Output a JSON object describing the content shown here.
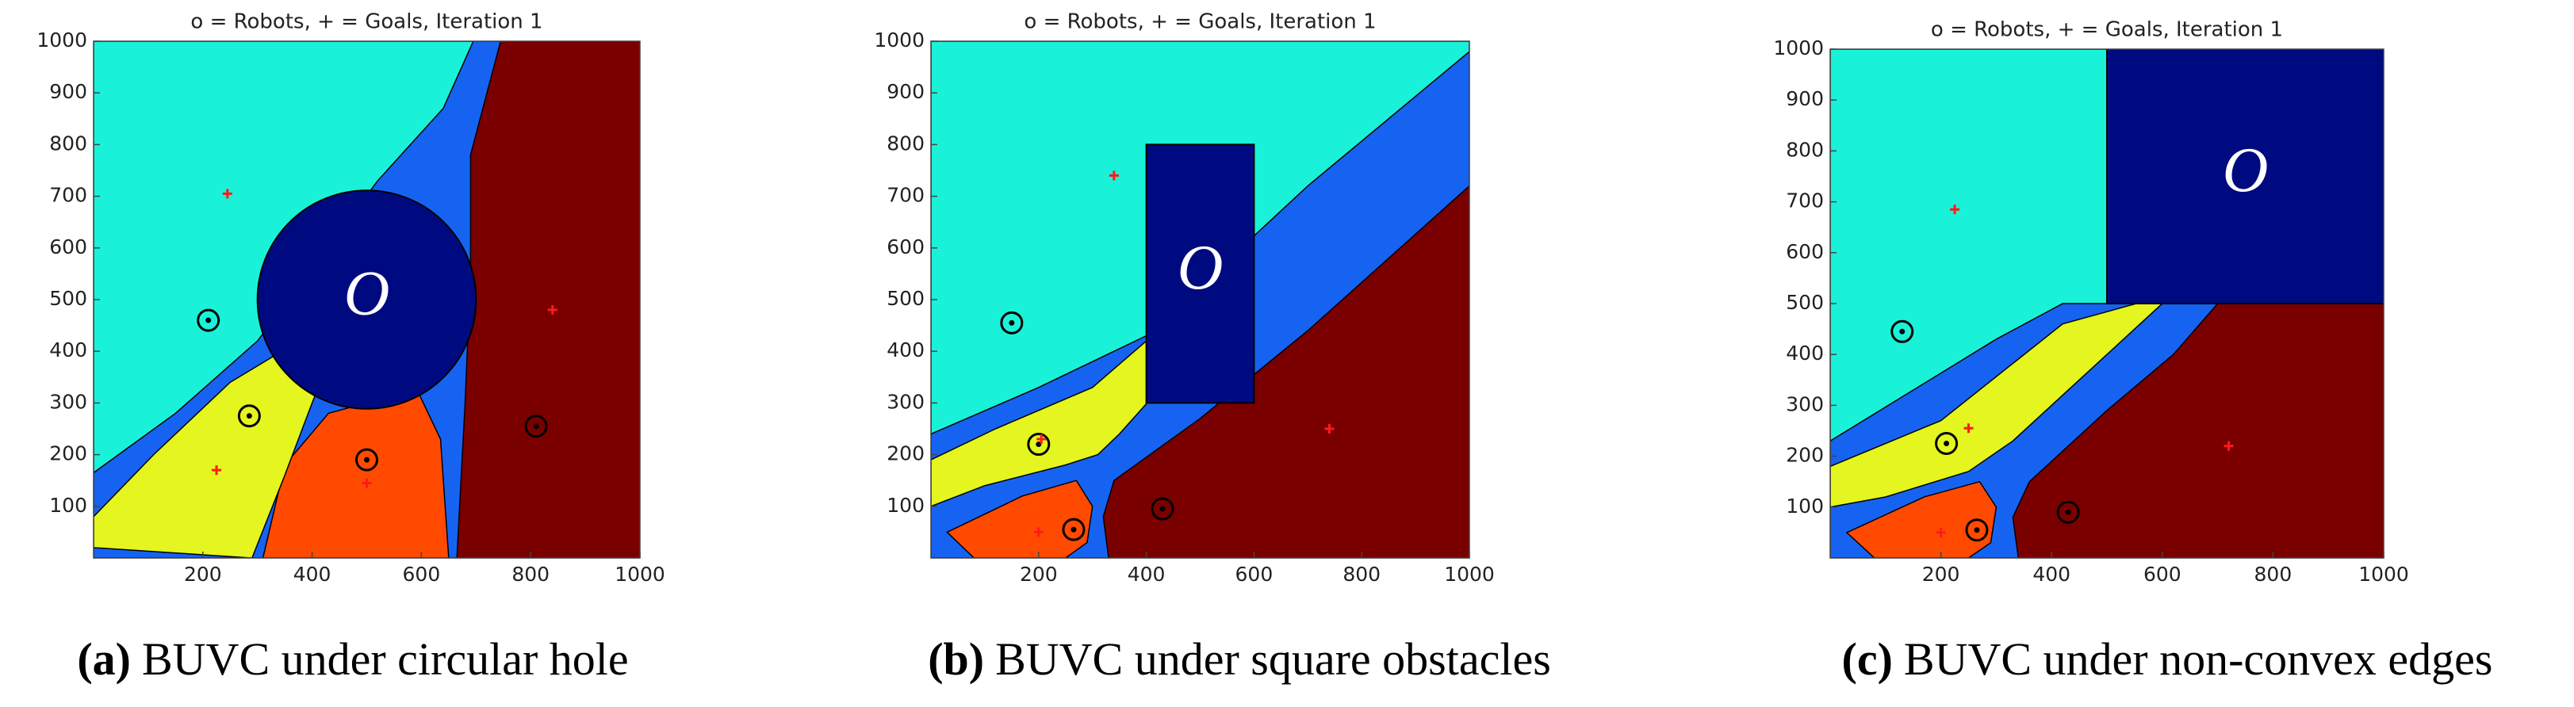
{
  "chart_data": [
    {
      "type": "scatter",
      "title": "o = Robots, + = Goals, Iteration 1",
      "caption_label": "(a)",
      "caption": "BUVC under circular hole",
      "xlim": [
        0,
        1000
      ],
      "ylim": [
        0,
        1000
      ],
      "xticks": [
        200,
        400,
        600,
        800,
        1000
      ],
      "yticks": [
        100,
        200,
        300,
        400,
        500,
        600,
        700,
        800,
        900,
        1000
      ],
      "series": [
        {
          "marker": "o",
          "color": "#000000",
          "x": [
            210,
            285,
            500,
            810
          ],
          "y": [
            460,
            275,
            190,
            255
          ]
        },
        {
          "marker": "+",
          "color": "#ff1a1a",
          "x": [
            245,
            225,
            500,
            840
          ],
          "y": [
            705,
            170,
            145,
            480
          ]
        }
      ],
      "regions": [
        {
          "color": "#1663f2",
          "x": [
            0,
            1000,
            1000,
            0
          ],
          "y": [
            0,
            0,
            1000,
            1000
          ]
        },
        {
          "color": "#19f2d8",
          "x": [
            0,
            695,
            640,
            520,
            400,
            300,
            150,
            0
          ],
          "y": [
            1000,
            1000,
            870,
            730,
            560,
            420,
            280,
            165
          ]
        },
        {
          "color": "#7a0000",
          "x": [
            745,
            1000,
            1000,
            665,
            680,
            690,
            690
          ],
          "y": [
            1000,
            1000,
            0,
            0,
            300,
            550,
            780
          ]
        },
        {
          "color": "#ff4a00",
          "x": [
            310,
            650,
            635,
            590,
            500,
            430,
            350
          ],
          "y": [
            0,
            0,
            230,
            330,
            300,
            280,
            180
          ]
        },
        {
          "color": "#e4f51f",
          "x": [
            0,
            290,
            350,
            400,
            430,
            360,
            250,
            110,
            0
          ],
          "y": [
            20,
            0,
            160,
            300,
            380,
            410,
            340,
            200,
            80
          ]
        }
      ],
      "obstacle": {
        "color": "#000a80",
        "center": [
          500,
          500
        ],
        "radius": 200,
        "label": "O"
      }
    },
    {
      "type": "scatter",
      "title": "o = Robots, + = Goals, Iteration 1",
      "caption_label": "(b)",
      "caption": "BUVC under square obstacles",
      "xlim": [
        0,
        1000
      ],
      "ylim": [
        0,
        1000
      ],
      "xticks": [
        200,
        400,
        600,
        800,
        1000
      ],
      "yticks": [
        100,
        200,
        300,
        400,
        500,
        600,
        700,
        800,
        900,
        1000
      ],
      "series": [
        {
          "marker": "o",
          "color": "#000000",
          "x": [
            150,
            200,
            265,
            430
          ],
          "y": [
            455,
            220,
            55,
            95
          ]
        },
        {
          "marker": "+",
          "color": "#ff1a1a",
          "x": [
            340,
            205,
            200,
            740
          ],
          "y": [
            740,
            230,
            50,
            250
          ]
        }
      ],
      "regions": [
        {
          "color": "#1663f2",
          "x": [
            0,
            1000,
            1000,
            0
          ],
          "y": [
            0,
            0,
            1000,
            1000
          ]
        },
        {
          "color": "#19f2d8",
          "x": [
            0,
            1000,
            1000,
            700,
            400,
            200,
            0
          ],
          "y": [
            1000,
            1000,
            980,
            720,
            430,
            330,
            240
          ]
        },
        {
          "color": "#7a0000",
          "x": [
            1000,
            1000,
            330,
            320,
            340,
            500,
            700
          ],
          "y": [
            720,
            0,
            0,
            80,
            150,
            270,
            440
          ]
        },
        {
          "color": "#e4f51f",
          "x": [
            0,
            120,
            300,
            400,
            410,
            350,
            310,
            250,
            100,
            0
          ],
          "y": [
            190,
            250,
            330,
            420,
            310,
            240,
            200,
            180,
            140,
            100
          ]
        },
        {
          "color": "#ff4a00",
          "x": [
            30,
            170,
            270,
            300,
            290,
            250,
            80
          ],
          "y": [
            50,
            120,
            150,
            100,
            30,
            0,
            0
          ]
        }
      ],
      "obstacle": {
        "color": "#000a80",
        "x": [
          400,
          600,
          600,
          400
        ],
        "y": [
          300,
          300,
          800,
          800
        ],
        "label": "O"
      }
    },
    {
      "type": "scatter",
      "title": "o = Robots, + = Goals, Iteration 1",
      "caption_label": "(c)",
      "caption": "BUVC under non-convex edges",
      "xlim": [
        0,
        1000
      ],
      "ylim": [
        0,
        1000
      ],
      "xticks": [
        200,
        400,
        600,
        800,
        1000
      ],
      "yticks": [
        100,
        200,
        300,
        400,
        500,
        600,
        700,
        800,
        900,
        1000
      ],
      "series": [
        {
          "marker": "o",
          "color": "#000000",
          "x": [
            130,
            210,
            265,
            430
          ],
          "y": [
            445,
            225,
            55,
            90
          ]
        },
        {
          "marker": "+",
          "color": "#ff1a1a",
          "x": [
            225,
            250,
            200,
            720
          ],
          "y": [
            685,
            255,
            50,
            220
          ]
        }
      ],
      "regions": [
        {
          "color": "#1663f2",
          "x": [
            0,
            1000,
            1000,
            0
          ],
          "y": [
            0,
            0,
            1000,
            1000
          ]
        },
        {
          "color": "#19f2d8",
          "x": [
            0,
            500,
            500,
            420,
            300,
            150,
            0
          ],
          "y": [
            1000,
            1000,
            500,
            500,
            430,
            330,
            230
          ]
        },
        {
          "color": "#7a0000",
          "x": [
            1000,
            1000,
            340,
            330,
            360,
            500,
            620,
            700
          ],
          "y": [
            500,
            0,
            0,
            80,
            150,
            290,
            400,
            500
          ]
        },
        {
          "color": "#e4f51f",
          "x": [
            0,
            200,
            420,
            620,
            330,
            250,
            100,
            0
          ],
          "y": [
            180,
            270,
            460,
            520,
            230,
            170,
            120,
            100
          ]
        },
        {
          "color": "#ff4a00",
          "x": [
            30,
            170,
            270,
            300,
            290,
            250,
            80
          ],
          "y": [
            50,
            120,
            150,
            100,
            30,
            0,
            0
          ]
        }
      ],
      "obstacle": {
        "color": "#000a80",
        "x": [
          500,
          1000,
          1000,
          500
        ],
        "y": [
          500,
          500,
          1000,
          1000
        ],
        "label": "O"
      }
    }
  ]
}
